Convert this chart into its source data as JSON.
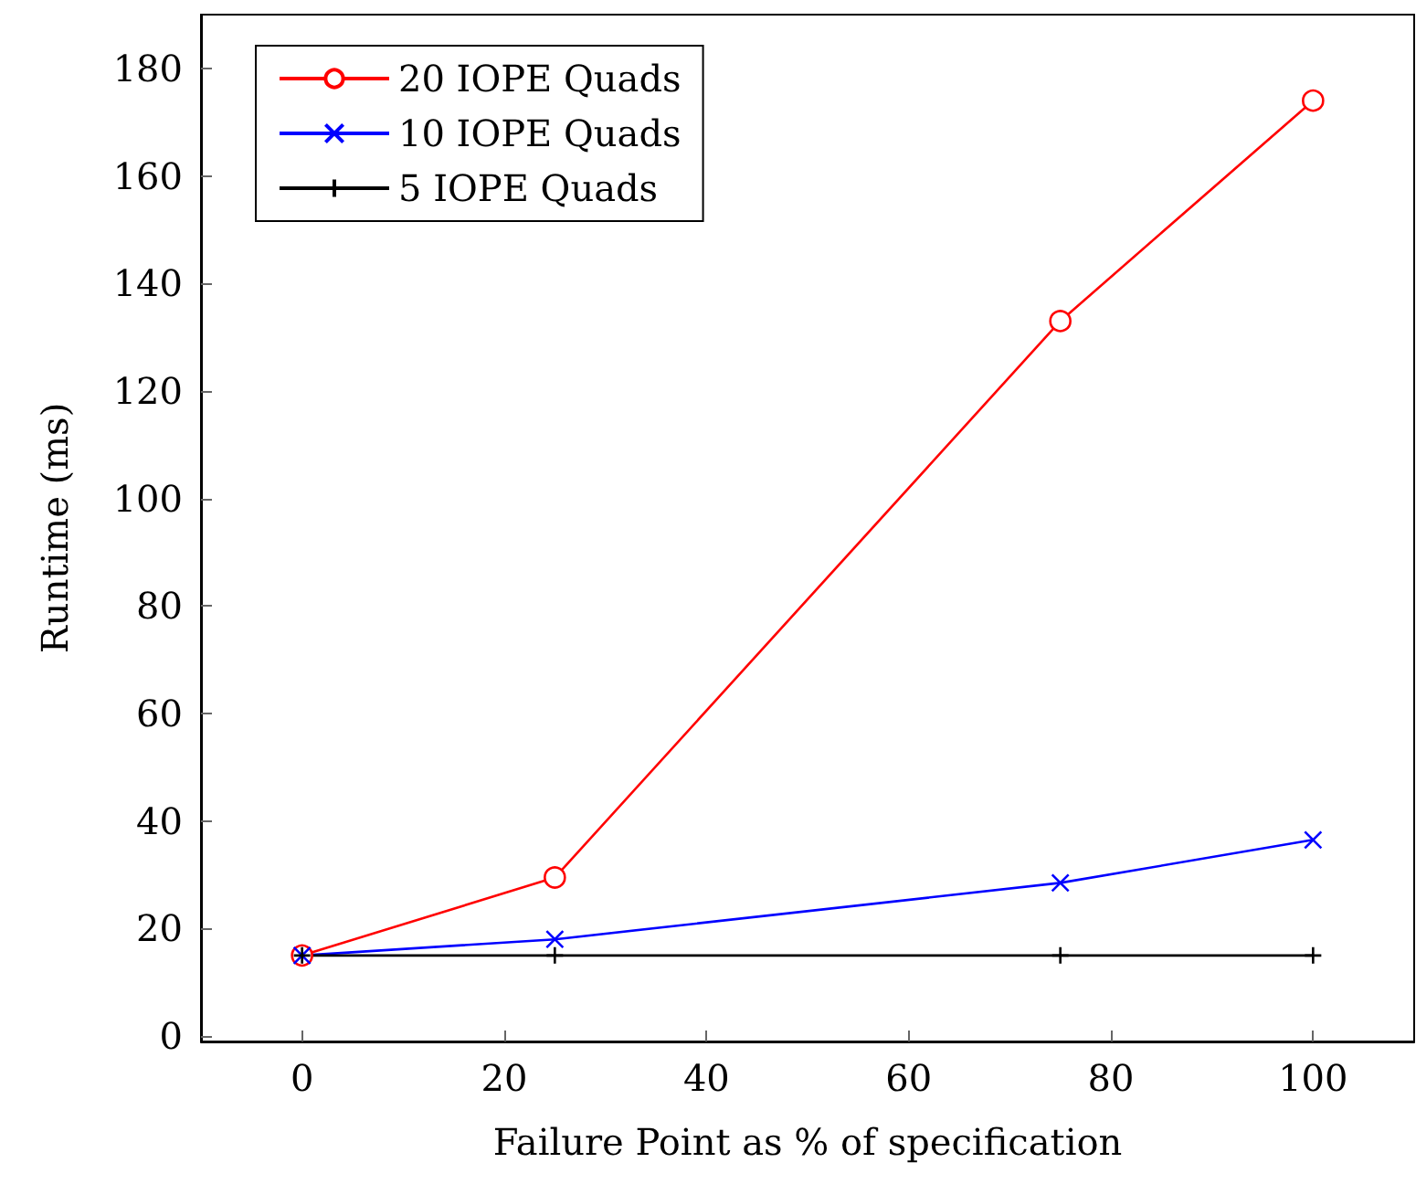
{
  "chart_data": {
    "type": "line",
    "xlabel": "Failure Point as % of specification",
    "ylabel": "Runtime (ms)",
    "x": [
      0,
      25,
      75,
      100
    ],
    "series": [
      {
        "name": "20 IOPE Quads",
        "color": "#ff0000",
        "marker": "circle",
        "values": [
          15,
          29.5,
          133,
          174
        ]
      },
      {
        "name": "10 IOPE Quads",
        "color": "#0000ff",
        "marker": "cross",
        "values": [
          15,
          18,
          28.5,
          36.5
        ]
      },
      {
        "name": "5 IOPE Quads",
        "color": "#000000",
        "marker": "plus",
        "values": [
          15,
          15,
          15,
          15
        ]
      }
    ],
    "xlim": [
      -10,
      110
    ],
    "xticks": [
      0,
      20,
      40,
      60,
      80,
      100
    ],
    "ylim": [
      -1,
      190
    ],
    "yticks": [
      0,
      20,
      40,
      60,
      80,
      100,
      120,
      140,
      160,
      180
    ],
    "grid": false,
    "legend": "top left",
    "line_style": "solid"
  }
}
